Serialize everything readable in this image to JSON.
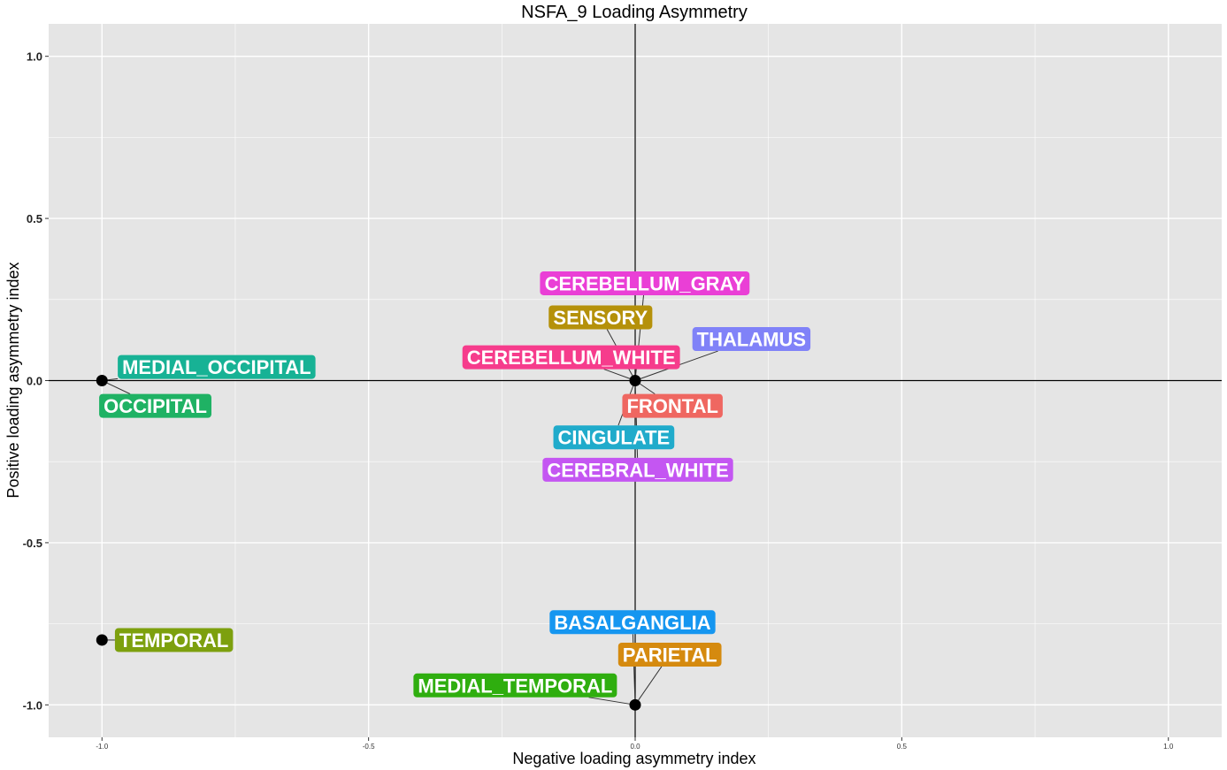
{
  "chart_data": {
    "type": "scatter",
    "title": "NSFA_9 Loading Asymmetry",
    "xlabel": "Negative loading asymmetry index",
    "ylabel": "Positive loading asymmetry index",
    "xlim": [
      -1.1,
      1.1
    ],
    "ylim": [
      -1.1,
      1.1
    ],
    "x_ticks": [
      -1.0,
      -0.5,
      0.0,
      0.5,
      1.0
    ],
    "y_ticks": [
      -1.0,
      -0.5,
      0.0,
      0.5,
      1.0
    ],
    "x_tick_labels": [
      "-1.0",
      "-0.5",
      "0.0",
      "0.5",
      "1.0"
    ],
    "y_tick_labels": [
      "-1.0",
      "-0.5",
      "0.0",
      "0.5",
      "1.0"
    ],
    "grid": true,
    "reference_lines": {
      "x": 0,
      "y": 0
    },
    "points": [
      {
        "x": -1.0,
        "y": 0.0
      },
      {
        "x": 0.0,
        "y": 0.0
      },
      {
        "x": -1.0,
        "y": -0.8
      },
      {
        "x": 0.0,
        "y": -1.0
      }
    ],
    "labels": [
      {
        "text": "CEREBELLUM_GRAY",
        "x": 0.0,
        "y": 0.0,
        "label_x": 0.018,
        "label_y": 0.3,
        "color": "#ea3fd6"
      },
      {
        "text": "SENSORY",
        "x": 0.0,
        "y": 0.0,
        "label_x": -0.065,
        "label_y": 0.195,
        "color": "#b5910a"
      },
      {
        "text": "THALAMUS",
        "x": 0.0,
        "y": 0.0,
        "label_x": 0.218,
        "label_y": 0.128,
        "color": "#8082f8"
      },
      {
        "text": "CEREBELLUM_WHITE",
        "x": 0.0,
        "y": 0.0,
        "label_x": -0.12,
        "label_y": 0.072,
        "color": "#f63c8c"
      },
      {
        "text": "MEDIAL_OCCIPITAL",
        "x": -1.0,
        "y": 0.0,
        "label_x": -0.785,
        "label_y": 0.042,
        "color": "#17b295"
      },
      {
        "text": "OCCIPITAL",
        "x": -1.0,
        "y": 0.0,
        "label_x": -0.9,
        "label_y": -0.078,
        "color": "#1fb264"
      },
      {
        "text": "FRONTAL",
        "x": 0.0,
        "y": 0.0,
        "label_x": 0.07,
        "label_y": -0.078,
        "color": "#ef6761"
      },
      {
        "text": "CINGULATE",
        "x": 0.0,
        "y": 0.0,
        "label_x": -0.04,
        "label_y": -0.175,
        "color": "#20abcb"
      },
      {
        "text": "CEREBRAL_WHITE",
        "x": 0.0,
        "y": 0.0,
        "label_x": 0.005,
        "label_y": -0.275,
        "color": "#c456f2"
      },
      {
        "text": "TEMPORAL",
        "x": -1.0,
        "y": -0.8,
        "label_x": -0.865,
        "label_y": -0.8,
        "color": "#7da00e"
      },
      {
        "text": "BASALGANGLIA",
        "x": 0.0,
        "y": -1.0,
        "label_x": -0.005,
        "label_y": -0.745,
        "color": "#1596f0"
      },
      {
        "text": "PARIETAL",
        "x": 0.0,
        "y": -1.0,
        "label_x": 0.065,
        "label_y": -0.845,
        "color": "#d58a0f"
      },
      {
        "text": "MEDIAL_TEMPORAL",
        "x": 0.0,
        "y": -1.0,
        "label_x": -0.225,
        "label_y": -0.94,
        "color": "#2fae0f"
      }
    ]
  },
  "colors": {
    "panel_background": "#e5e5e5",
    "grid_major": "#ffffff",
    "point": "#000000",
    "segment": "#333333"
  }
}
